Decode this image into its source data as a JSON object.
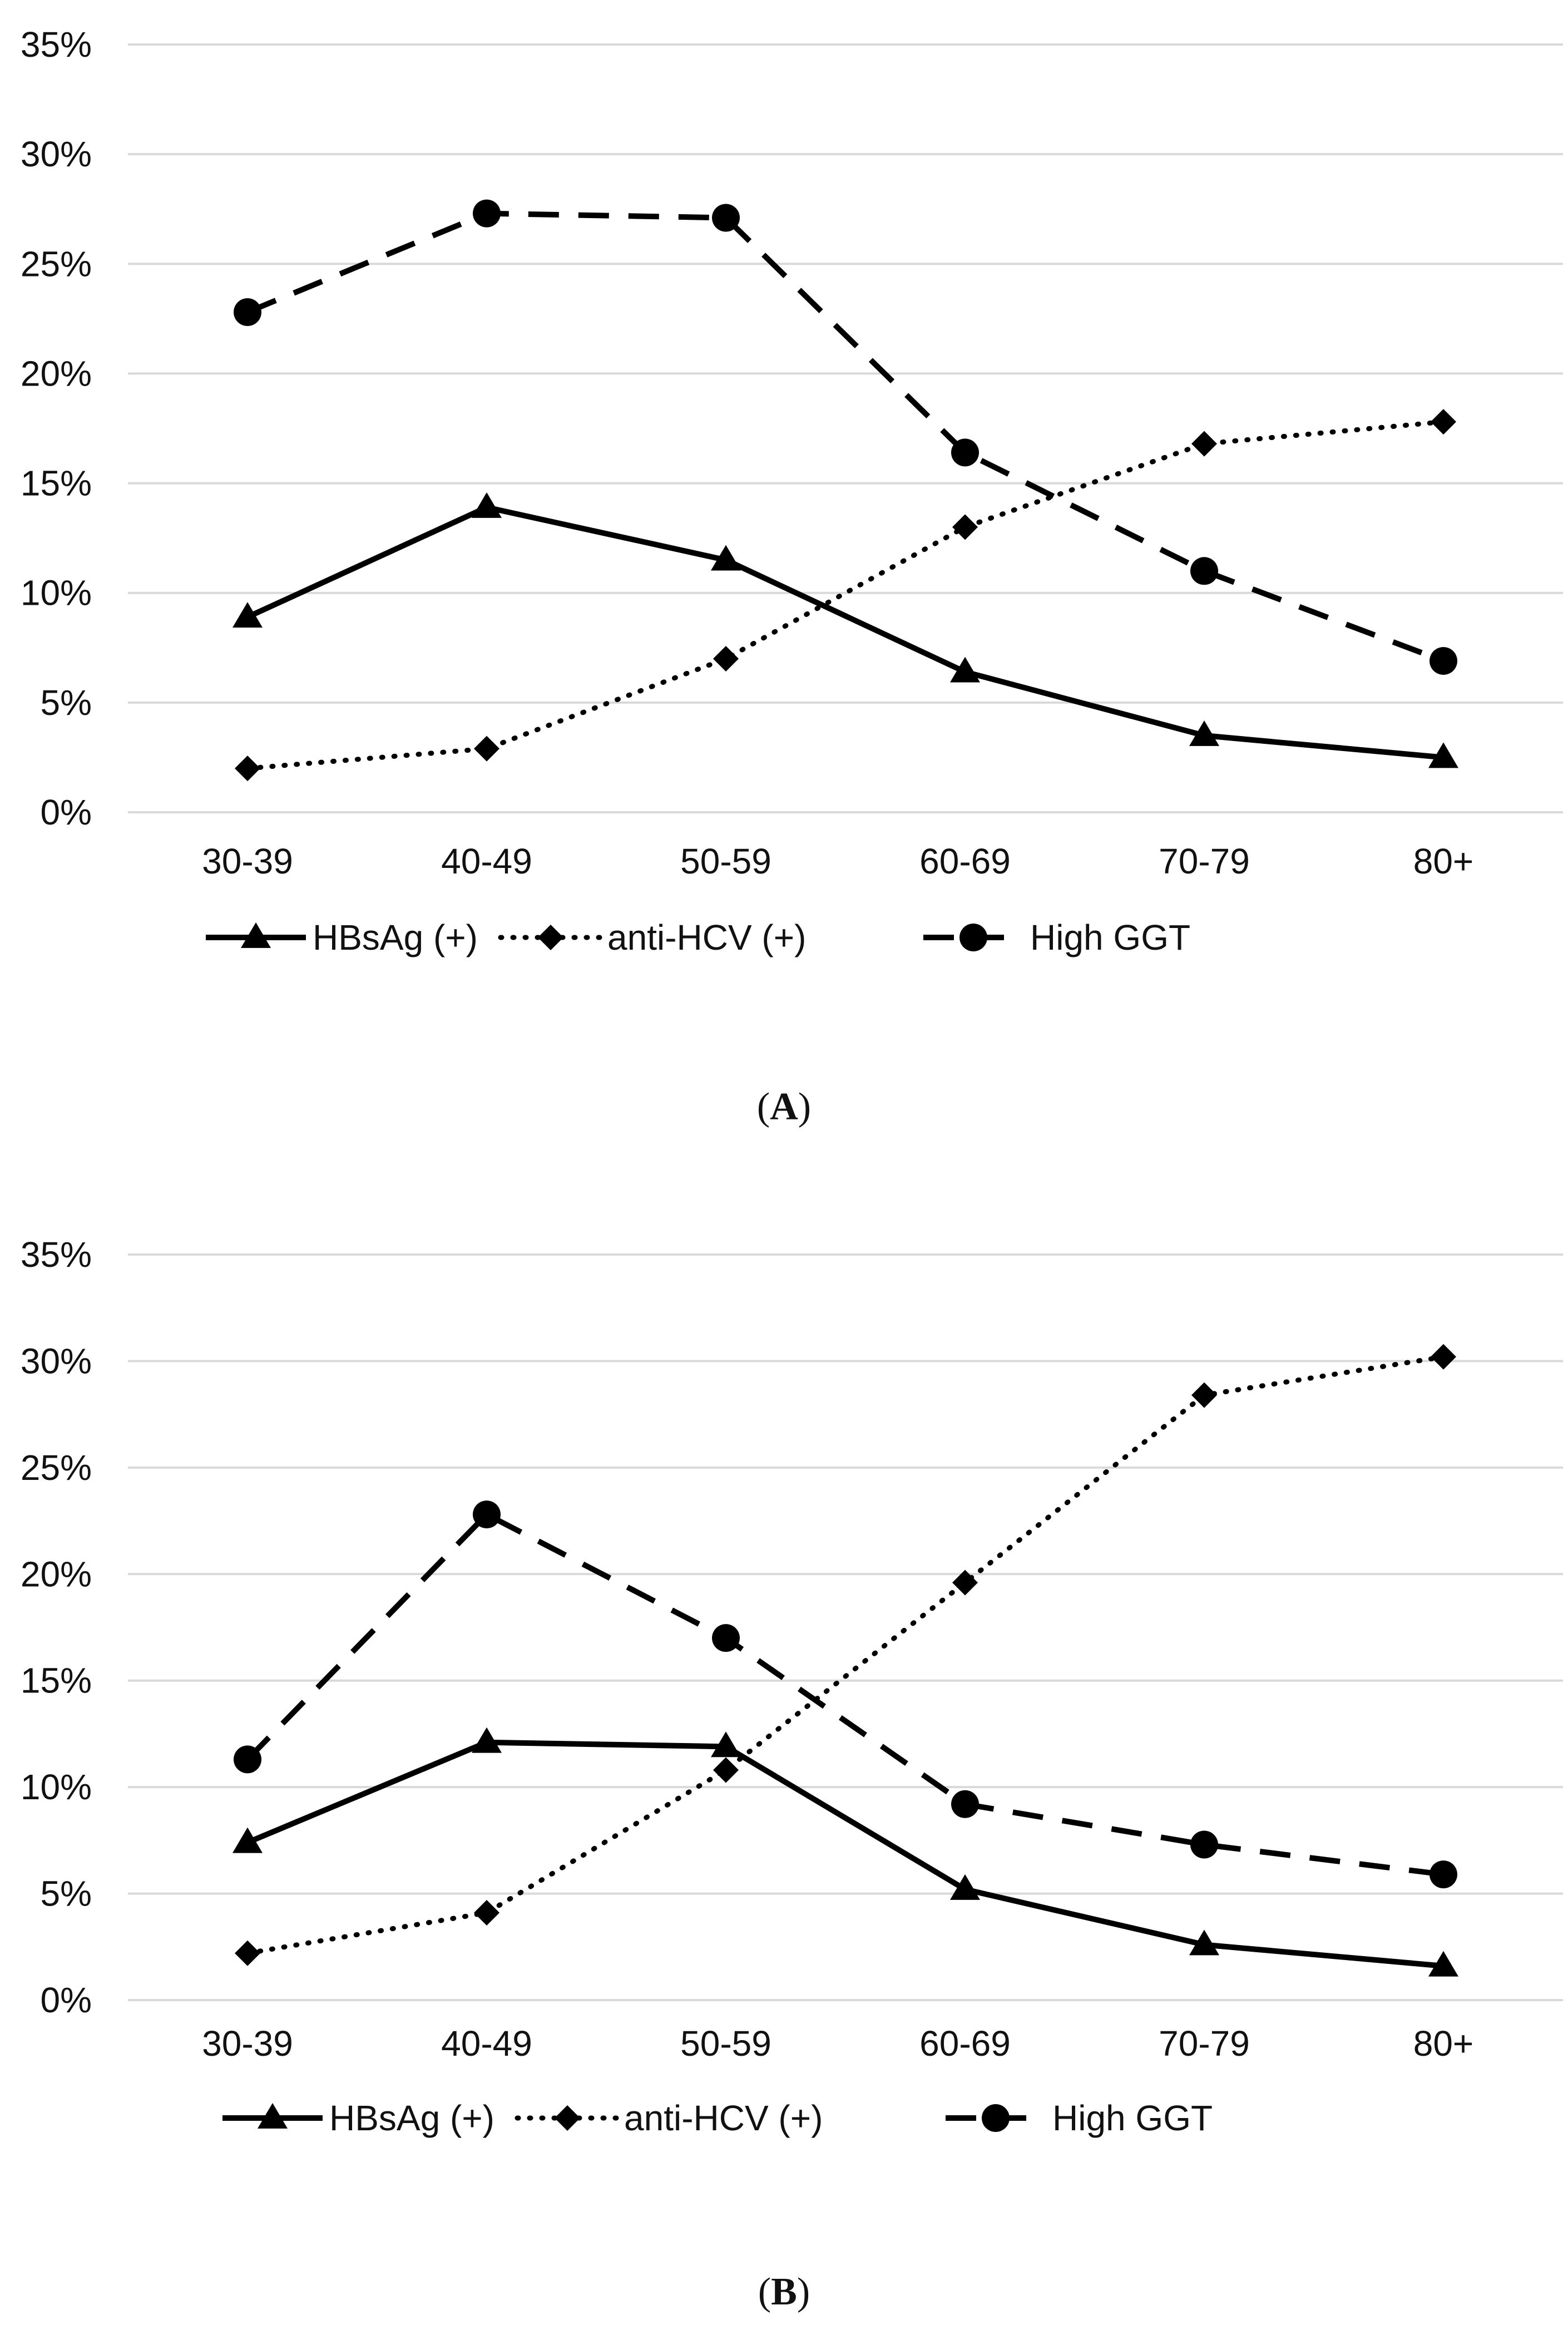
{
  "chart_data": [
    {
      "type": "line",
      "panel": "A",
      "categories": [
        "30-39",
        "40-49",
        "50-59",
        "60-69",
        "70-79",
        "80+"
      ],
      "ylim": [
        0,
        35
      ],
      "yticks": [
        "0%",
        "5%",
        "10%",
        "15%",
        "20%",
        "25%",
        "30%",
        "35%"
      ],
      "grid": true,
      "legend_position": "bottom",
      "series": [
        {
          "name": "HBsAg (+)",
          "style": "solid",
          "marker": "triangle",
          "values": [
            8.9,
            13.9,
            11.5,
            6.4,
            3.5,
            2.5
          ]
        },
        {
          "name": "anti-HCV (+)",
          "style": "dotted",
          "marker": "diamond",
          "values": [
            2.0,
            2.9,
            7.0,
            13.0,
            16.8,
            17.8
          ]
        },
        {
          "name": "High GGT",
          "style": "dashed",
          "marker": "circle",
          "values": [
            22.8,
            27.3,
            27.1,
            16.4,
            11.0,
            6.9
          ]
        }
      ]
    },
    {
      "type": "line",
      "panel": "B",
      "categories": [
        "30-39",
        "40-49",
        "50-59",
        "60-69",
        "70-79",
        "80+"
      ],
      "ylim": [
        0,
        35
      ],
      "yticks": [
        "0%",
        "5%",
        "10%",
        "15%",
        "20%",
        "25%",
        "30%",
        "35%"
      ],
      "grid": true,
      "legend_position": "bottom",
      "series": [
        {
          "name": "HBsAg (+)",
          "style": "solid",
          "marker": "triangle",
          "values": [
            7.4,
            12.1,
            11.9,
            5.2,
            2.6,
            1.6
          ]
        },
        {
          "name": "anti-HCV (+)",
          "style": "dotted",
          "marker": "diamond",
          "values": [
            2.2,
            4.1,
            10.8,
            19.6,
            28.4,
            30.2
          ]
        },
        {
          "name": "High GGT",
          "style": "dashed",
          "marker": "circle",
          "values": [
            11.3,
            22.8,
            17.0,
            9.2,
            7.3,
            5.9
          ]
        }
      ]
    }
  ],
  "panels": [
    {
      "label_open": "(",
      "label_letter": "A",
      "label_close": ")"
    },
    {
      "label_open": "(",
      "label_letter": "B",
      "label_close": ")"
    }
  ],
  "colors": {
    "line": "#000000",
    "grid": "#d9d9d9",
    "text": "#111111"
  }
}
